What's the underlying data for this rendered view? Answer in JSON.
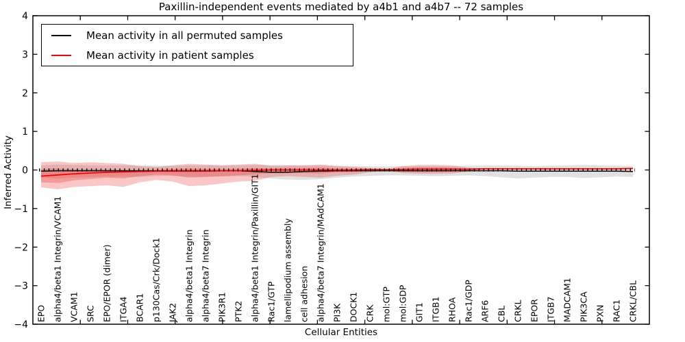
{
  "title": "Paxillin-independent events mediated by a4b1 and a4b7 -- 72 samples",
  "axes": {
    "ylabel": "Inferred Activity",
    "xlabel": "Cellular Entities",
    "ytick_labels": [
      "4",
      "3",
      "2",
      "1",
      "0",
      "−1",
      "−2",
      "−3",
      "−4"
    ]
  },
  "legend": {
    "entries": [
      {
        "label": "Mean activity in all permuted samples",
        "color": "#000000"
      },
      {
        "label": "Mean activity in patient samples",
        "color": "#ff0000"
      }
    ]
  },
  "chart_data": {
    "type": "line",
    "title": "Paxillin-independent events mediated by a4b1 and a4b7 -- 72 samples",
    "xlabel": "Cellular Entities",
    "ylabel": "Inferred Activity",
    "ylim": [
      -4,
      4
    ],
    "yticks": [
      4,
      3,
      2,
      1,
      0,
      -1,
      -2,
      -3,
      -4
    ],
    "grid": false,
    "legend_position": "upper left",
    "zero_reference_markers": true,
    "categories": [
      "EPO",
      "alpha4/beta1 Integrin/VCAM1",
      "VCAM1",
      "SRC",
      "EPO/EPOR (dimer)",
      "ITGA4",
      "BCAR1",
      "p130Cas/Crk/Dock1",
      "JAK2",
      "alpha4/beta1 Integrin",
      "alpha4/beta7 Integrin",
      "PIK3R1",
      "PTK2",
      "alpha4/beta1 Integrin/Paxillin/GIT1",
      "Rac1/GTP",
      "lamellipodium assembly",
      "cell adhesion",
      "alpha4/beta7 Integrin/MAdCAM1",
      "PI3K",
      "DOCK1",
      "CRK",
      "mol:GTP",
      "mol:GDP",
      "GIT1",
      "ITGB1",
      "RHOA",
      "Rac1/GDP",
      "ARF6",
      "CBL",
      "CRKL",
      "EPOR",
      "ITGB7",
      "MADCAM1",
      "PIK3CA",
      "PXN",
      "RAC1",
      "CRKL/CBL"
    ],
    "series": [
      {
        "name": "Mean activity in all permuted samples",
        "color": "#000000",
        "values": [
          -0.03,
          -0.02,
          -0.02,
          -0.02,
          -0.02,
          -0.02,
          -0.02,
          -0.02,
          -0.02,
          -0.02,
          -0.02,
          -0.02,
          -0.02,
          -0.04,
          -0.06,
          -0.06,
          -0.04,
          -0.03,
          -0.02,
          -0.02,
          -0.02,
          -0.02,
          -0.02,
          -0.02,
          -0.02,
          -0.02,
          -0.02,
          -0.02,
          -0.02,
          -0.03,
          -0.03,
          -0.03,
          -0.03,
          -0.03,
          -0.03,
          -0.03,
          -0.04
        ]
      },
      {
        "name": "Mean activity in patient samples",
        "color": "#ff0000",
        "values": [
          -0.16,
          -0.13,
          -0.1,
          -0.08,
          -0.06,
          -0.05,
          -0.04,
          -0.03,
          -0.03,
          -0.03,
          -0.03,
          -0.02,
          -0.02,
          -0.01,
          0,
          0,
          0,
          0,
          0,
          0,
          0.01,
          0.01,
          0.01,
          0.02,
          0.02,
          0.02,
          0.02,
          0.03,
          0.03,
          0.03,
          0.03,
          0.03,
          0.03,
          0.03,
          0.03,
          0.03,
          0.04
        ]
      }
    ],
    "bands": [
      {
        "name": "permuted-samples-spread",
        "color": "#888888",
        "opacity": 0.25,
        "start_index": 0,
        "upper": [
          0.12,
          0.14,
          0.13,
          0.12,
          0.12,
          0.12,
          0.12,
          0.11,
          0.11,
          0.12,
          0.12,
          0.12,
          0.12,
          0.13,
          0.12,
          0.12,
          0.12,
          0.12,
          0.11,
          0.1,
          0.1,
          0.09,
          0.1,
          0.1,
          0.1,
          0.1,
          0.11,
          0.12,
          0.12,
          0.11,
          0.1,
          0.11,
          0.12,
          0.13,
          0.12,
          0.11,
          0.1
        ],
        "lower": [
          -0.2,
          -0.22,
          -0.2,
          -0.18,
          -0.17,
          -0.18,
          -0.18,
          -0.16,
          -0.15,
          -0.17,
          -0.18,
          -0.17,
          -0.16,
          -0.18,
          -0.22,
          -0.25,
          -0.26,
          -0.24,
          -0.2,
          -0.17,
          -0.15,
          -0.14,
          -0.14,
          -0.15,
          -0.16,
          -0.15,
          -0.14,
          -0.16,
          -0.19,
          -0.22,
          -0.2,
          -0.18,
          -0.18,
          -0.21,
          -0.19,
          -0.17,
          -0.18
        ]
      },
      {
        "name": "patient-samples-spread-outer",
        "color": "#ee3333",
        "opacity": 0.28,
        "start_index": 0,
        "upper": [
          0.2,
          0.22,
          0.18,
          0.2,
          0.18,
          0.16,
          0.1,
          0.08,
          0.12,
          0.16,
          0.14,
          0.12,
          0.14,
          0.16,
          0.11,
          0.12,
          0.12,
          0.14,
          0.1,
          0.08,
          0.05,
          0.02,
          0.1,
          0.13,
          0.13,
          0.12,
          0.06,
          0.03
        ],
        "lower": [
          -0.45,
          -0.5,
          -0.44,
          -0.42,
          -0.4,
          -0.44,
          -0.32,
          -0.26,
          -0.3,
          -0.42,
          -0.4,
          -0.35,
          -0.3,
          -0.28,
          -0.18,
          -0.16,
          -0.18,
          -0.2,
          -0.15,
          -0.12,
          -0.06,
          -0.01,
          -0.08,
          -0.1,
          -0.1,
          -0.09,
          -0.04,
          0.03
        ]
      },
      {
        "name": "patient-samples-spread-inner",
        "color": "#ee3333",
        "opacity": 0.3,
        "start_index": 0,
        "upper": [
          0.02,
          0.04,
          0.01,
          0.02,
          0.01,
          0.0,
          -0.01,
          0.0,
          0.02,
          0.04,
          0.03,
          0.02,
          0.03,
          0.05,
          0.04,
          0.05,
          0.05,
          0.06,
          0.04,
          0.03,
          0.03,
          0.01,
          0.05,
          0.07,
          0.07,
          0.06,
          0.03,
          0.03
        ],
        "lower": [
          -0.32,
          -0.34,
          -0.27,
          -0.23,
          -0.2,
          -0.22,
          -0.16,
          -0.12,
          -0.14,
          -0.2,
          -0.18,
          -0.16,
          -0.14,
          -0.12,
          -0.08,
          -0.07,
          -0.08,
          -0.09,
          -0.06,
          -0.05,
          -0.03,
          0.0,
          -0.04,
          -0.05,
          -0.05,
          -0.04,
          -0.01,
          0.03
        ]
      }
    ]
  }
}
